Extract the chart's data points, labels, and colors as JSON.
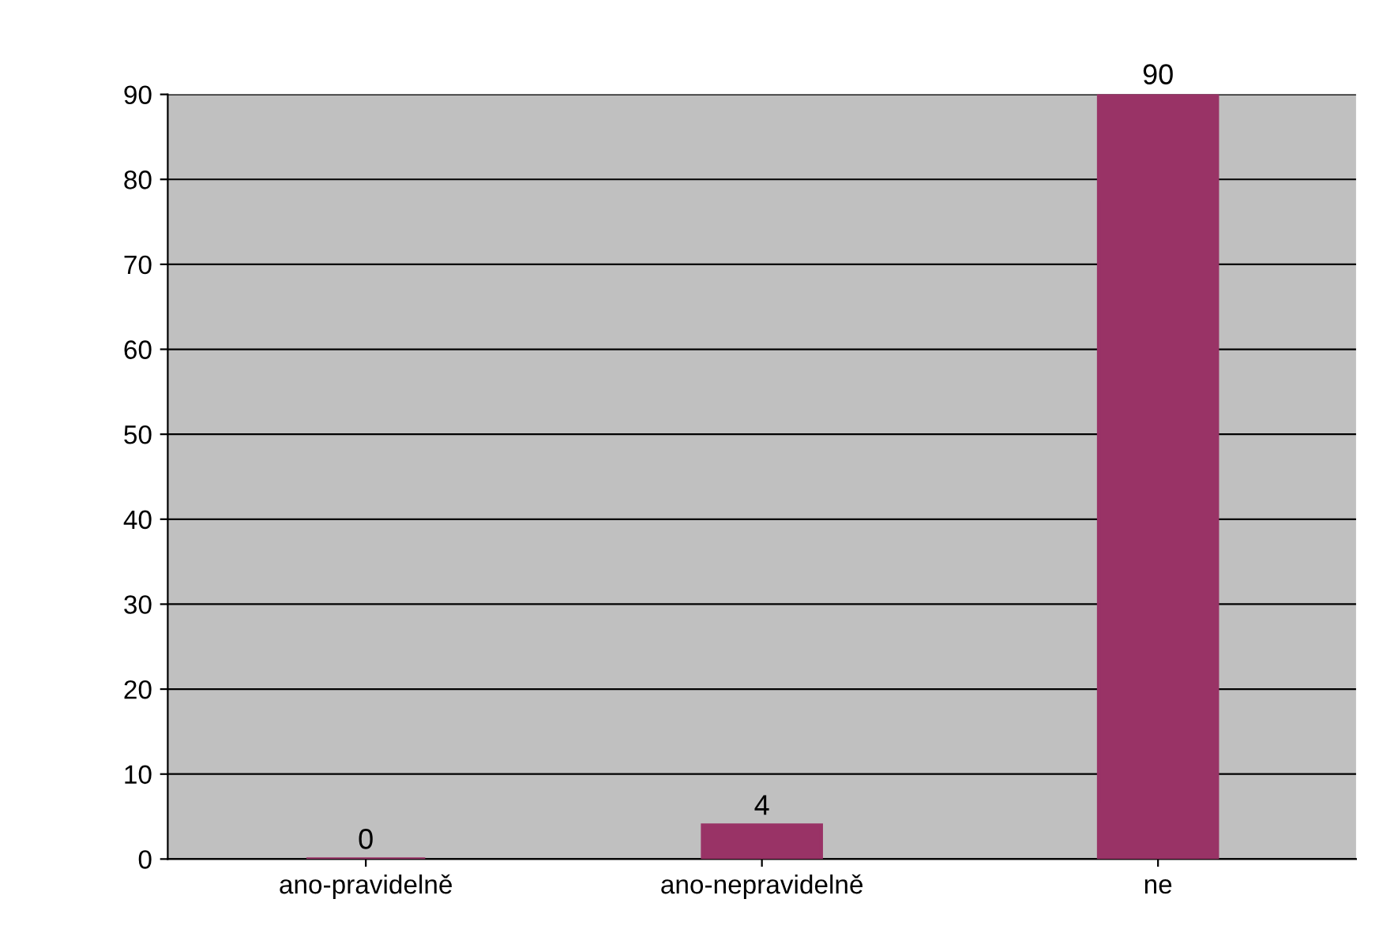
{
  "chart_data": {
    "type": "bar",
    "categories": [
      "ano-pravidelně",
      "ano-nepravidelně",
      "ne"
    ],
    "values": [
      0,
      4,
      90
    ],
    "color": "#993366",
    "ylim": [
      0,
      90
    ],
    "yticks": [
      0,
      10,
      20,
      30,
      40,
      50,
      60,
      70,
      80,
      90
    ],
    "grid": "y",
    "data_labels": true
  }
}
